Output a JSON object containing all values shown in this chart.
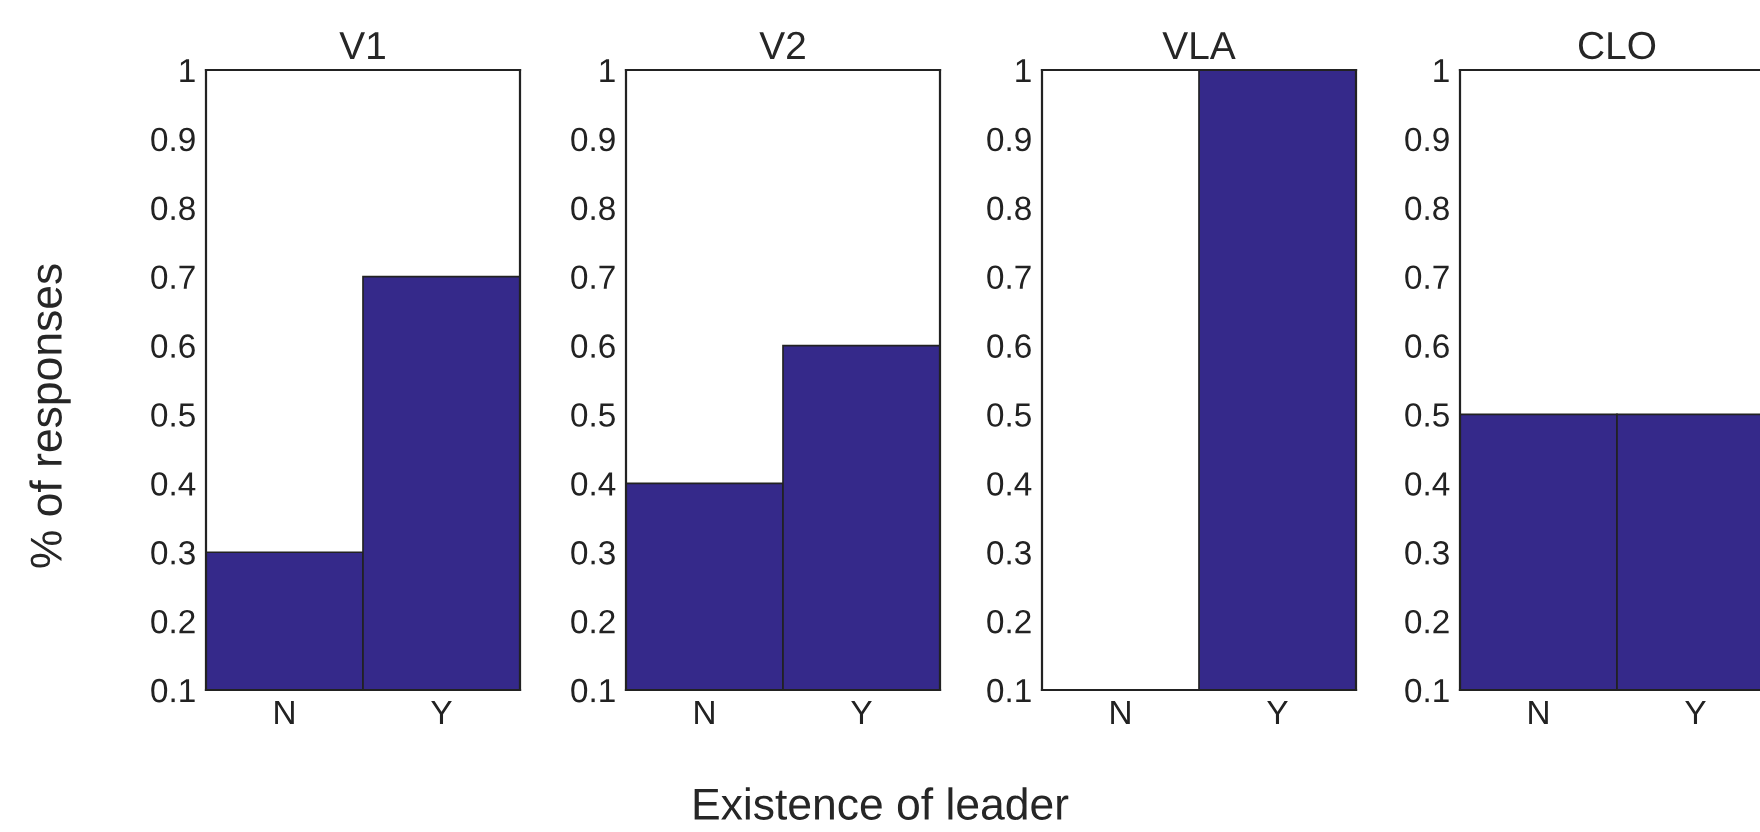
{
  "chart_data": [
    {
      "type": "bar",
      "title": "V1",
      "ylabel": "% of responses",
      "categories": [
        "N",
        "Y"
      ],
      "values": [
        0.3,
        0.7
      ],
      "color": "#35298a",
      "ylim": [
        0.1,
        1
      ],
      "yticks": [
        0.1,
        0.2,
        0.3,
        0.4,
        0.5,
        0.6,
        0.7,
        0.8,
        0.9,
        1
      ],
      "grid": false
    },
    {
      "type": "bar",
      "title": "V2",
      "xlabel": "Existence of leader",
      "categories": [
        "N",
        "Y"
      ],
      "values": [
        0.4,
        0.6
      ],
      "color": "#35298a",
      "ylim": [
        0.1,
        1
      ],
      "yticks": [
        0.1,
        0.2,
        0.3,
        0.4,
        0.5,
        0.6,
        0.7,
        0.8,
        0.9,
        1
      ],
      "grid": false
    },
    {
      "type": "bar",
      "title": "VLA",
      "categories": [
        "N",
        "Y"
      ],
      "values": [
        null,
        1
      ],
      "color": "#35298a",
      "ylim": [
        0.1,
        1
      ],
      "yticks": [
        0.1,
        0.2,
        0.3,
        0.4,
        0.5,
        0.6,
        0.7,
        0.8,
        0.9,
        1
      ],
      "grid": false
    },
    {
      "type": "bar",
      "title": "CLO",
      "categories": [
        "N",
        "Y"
      ],
      "values": [
        0.5,
        0.5
      ],
      "color": "#35298a",
      "ylim": [
        0.1,
        1
      ],
      "yticks": [
        0.1,
        0.2,
        0.3,
        0.4,
        0.5,
        0.6,
        0.7,
        0.8,
        0.9,
        1
      ],
      "grid": false
    }
  ]
}
